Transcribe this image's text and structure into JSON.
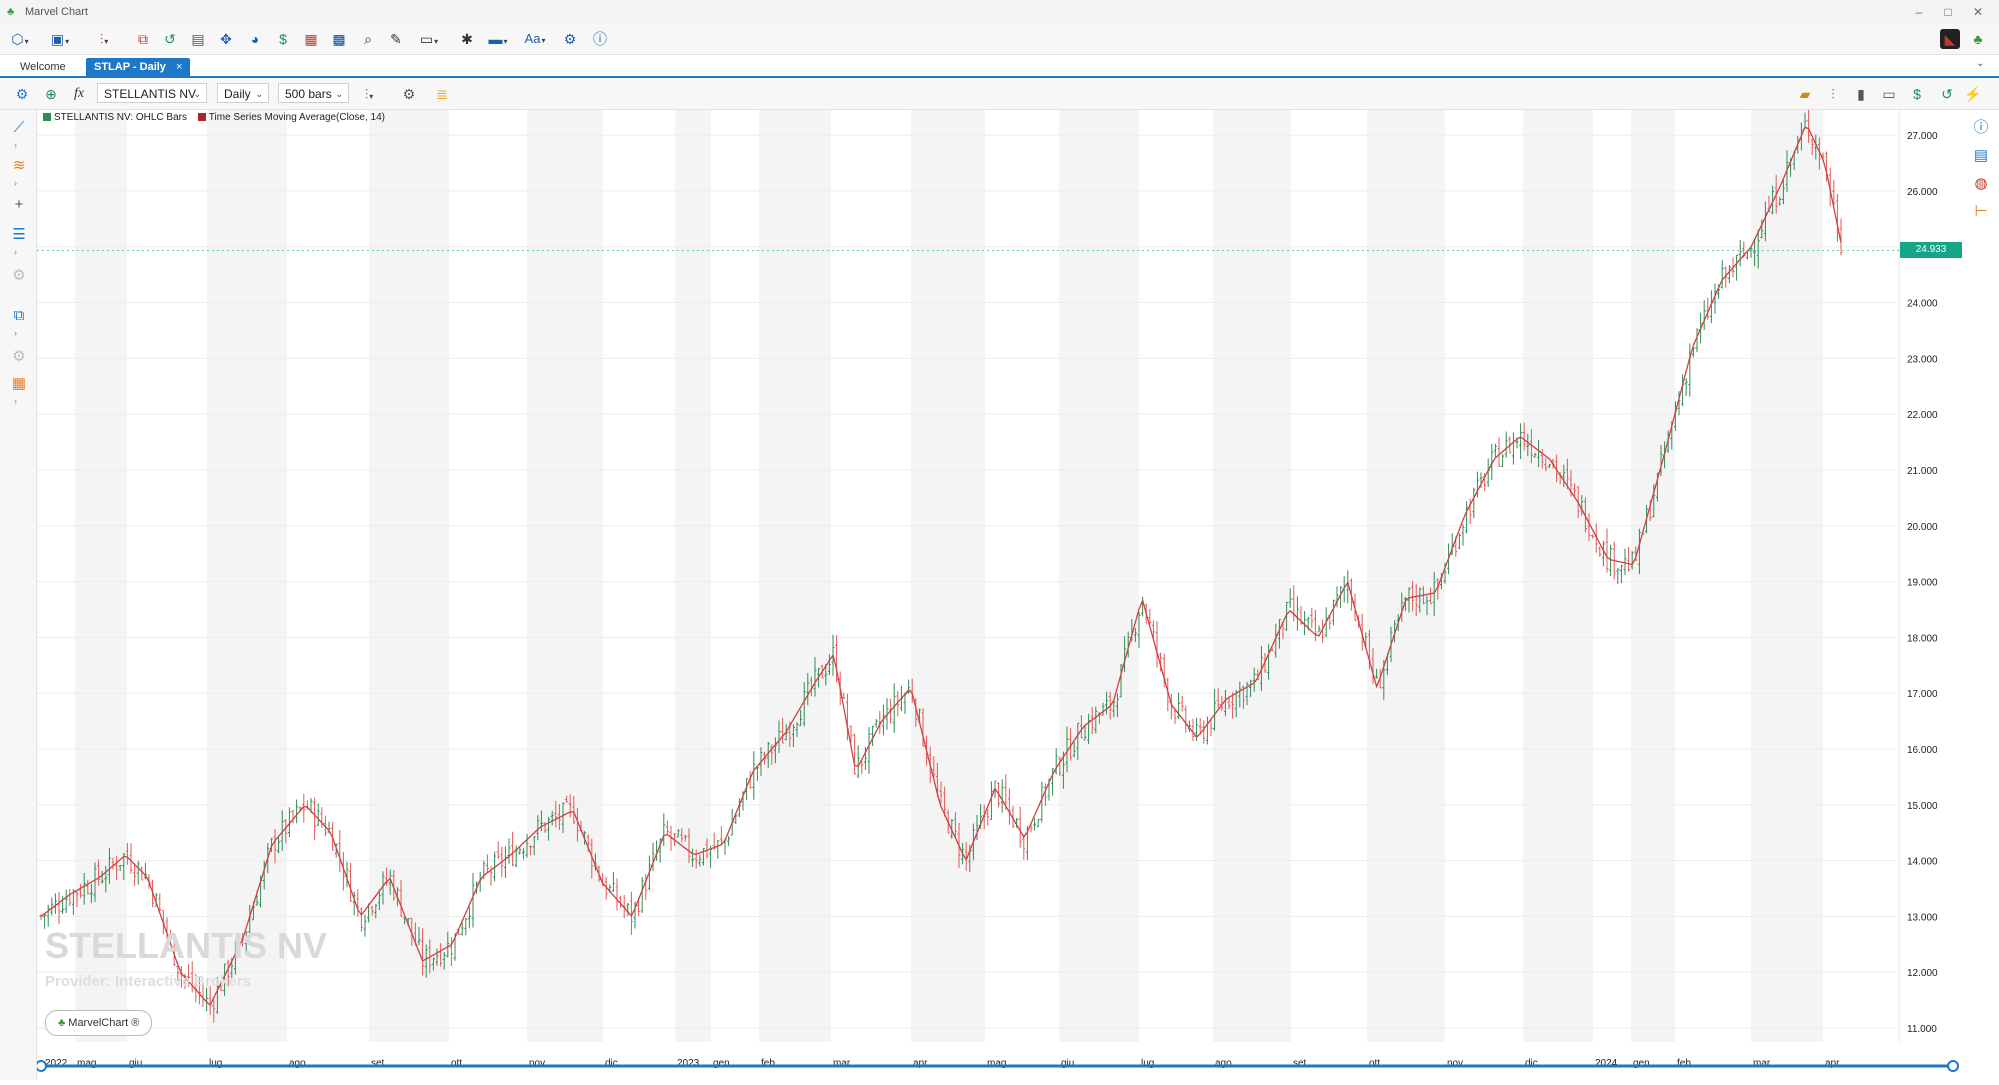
{
  "window": {
    "title": "Marvel Chart"
  },
  "tabs": [
    {
      "label": "Welcome",
      "active": false
    },
    {
      "label": "STLAP - Daily",
      "active": true,
      "close": "×"
    }
  ],
  "chart_toolbar": {
    "symbol": "STELLANTIS NV",
    "period": "Daily",
    "bars": "500 bars"
  },
  "legend": [
    {
      "label": "STELLANTIS NV: OHLC Bars",
      "color": "#2e8b57"
    },
    {
      "label": "Time Series Moving Average(Close, 14)",
      "color": "#b22222"
    }
  ],
  "watermark": {
    "symbol": "STELLANTIS NV",
    "provider": "Provider: Interactive Brokers"
  },
  "badge": "MarvelChart ®",
  "last_price": "24.933",
  "colors": {
    "accent": "#1e78c8",
    "up": "#2e8b57",
    "down": "#e05858",
    "ma": "#d04040",
    "price_tag": "#17a589"
  },
  "chart_data": {
    "type": "ohlc",
    "y_ticks": [
      "11.000",
      "12.000",
      "13.000",
      "14.000",
      "15.000",
      "16.000",
      "17.000",
      "18.000",
      "19.000",
      "20.000",
      "21.000",
      "22.000",
      "23.000",
      "24.000",
      "25.000",
      "26.000",
      "27.000"
    ],
    "ylim": [
      10.75,
      27.45
    ],
    "x_labels": [
      "2022",
      "mag",
      "giu",
      "lug",
      "ago",
      "set",
      "ott",
      "nov",
      "dic",
      "2023",
      "gen",
      "feb",
      "mar",
      "apr",
      "mag",
      "giu",
      "lug",
      "ago",
      "set",
      "ott",
      "nov",
      "dic",
      "2024",
      "gen",
      "feb",
      "mar",
      "apr"
    ],
    "close_path": [
      [
        0,
        13.0
      ],
      [
        0.8,
        13.4
      ],
      [
        1.6,
        13.7
      ],
      [
        2.3,
        14.1
      ],
      [
        2.9,
        13.7
      ],
      [
        3.8,
        12.0
      ],
      [
        4.6,
        11.4
      ],
      [
        5.5,
        12.6
      ],
      [
        6.3,
        14.3
      ],
      [
        7.2,
        15.0
      ],
      [
        7.9,
        14.5
      ],
      [
        8.7,
        13.0
      ],
      [
        9.5,
        13.7
      ],
      [
        10.4,
        12.2
      ],
      [
        11.2,
        12.5
      ],
      [
        12.0,
        13.7
      ],
      [
        12.8,
        14.1
      ],
      [
        13.6,
        14.6
      ],
      [
        14.5,
        14.9
      ],
      [
        15.3,
        13.6
      ],
      [
        16.1,
        13.0
      ],
      [
        17.0,
        14.5
      ],
      [
        17.8,
        14.1
      ],
      [
        18.6,
        14.3
      ],
      [
        19.4,
        15.6
      ],
      [
        20.3,
        16.3
      ],
      [
        21.1,
        17.2
      ],
      [
        21.6,
        17.7
      ],
      [
        22.2,
        15.6
      ],
      [
        22.9,
        16.5
      ],
      [
        23.7,
        17.1
      ],
      [
        24.5,
        15.0
      ],
      [
        25.2,
        14.0
      ],
      [
        26.0,
        15.3
      ],
      [
        26.8,
        14.4
      ],
      [
        27.6,
        15.6
      ],
      [
        28.4,
        16.4
      ],
      [
        29.2,
        16.8
      ],
      [
        30.0,
        18.7
      ],
      [
        30.8,
        16.8
      ],
      [
        31.5,
        16.2
      ],
      [
        32.3,
        16.9
      ],
      [
        33.1,
        17.2
      ],
      [
        34.0,
        18.5
      ],
      [
        34.8,
        18.0
      ],
      [
        35.6,
        19.0
      ],
      [
        36.4,
        17.1
      ],
      [
        37.2,
        18.7
      ],
      [
        38.0,
        18.8
      ],
      [
        38.8,
        20.2
      ],
      [
        39.6,
        21.2
      ],
      [
        40.3,
        21.6
      ],
      [
        41.1,
        21.2
      ],
      [
        41.9,
        20.4
      ],
      [
        42.7,
        19.4
      ],
      [
        43.4,
        19.3
      ],
      [
        44.2,
        21.2
      ],
      [
        45.0,
        23.2
      ],
      [
        45.8,
        24.4
      ],
      [
        46.6,
        25.0
      ],
      [
        47.4,
        26.1
      ],
      [
        48.1,
        27.2
      ],
      [
        48.6,
        26.5
      ],
      [
        49.1,
        24.9
      ]
    ]
  }
}
